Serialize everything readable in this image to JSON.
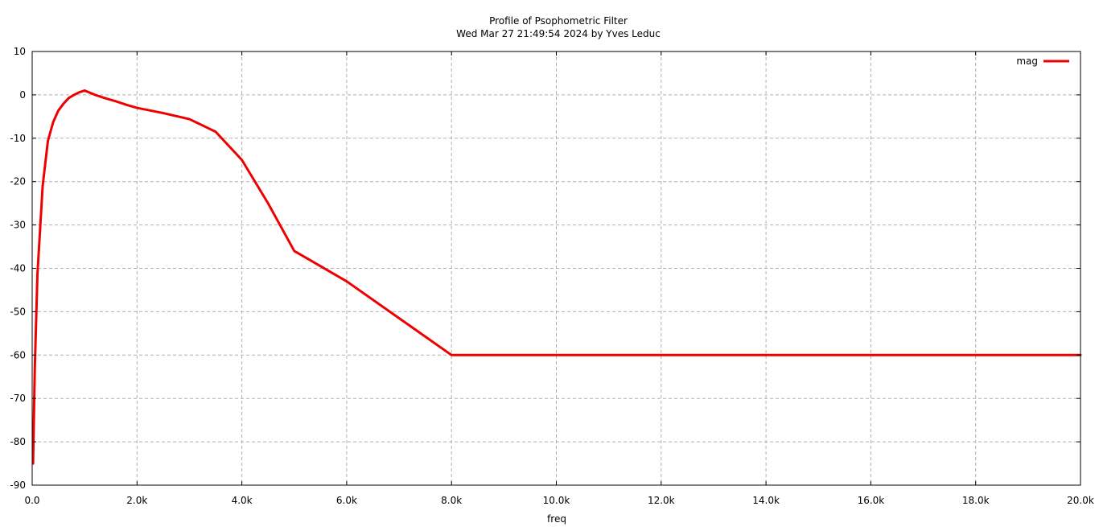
{
  "chart_data": {
    "type": "line",
    "title": "Profile of Psophometric Filter",
    "subtitle": "Wed Mar 27 21:49:54 2024 by Yves Leduc",
    "xlabel": "freq",
    "ylabel": "",
    "xlim": [
      0,
      20000
    ],
    "ylim": [
      -90,
      10
    ],
    "x_ticks": [
      0,
      2000,
      4000,
      6000,
      8000,
      10000,
      12000,
      14000,
      16000,
      18000,
      20000
    ],
    "x_tick_labels": [
      "0.0",
      "2.0k",
      "4.0k",
      "6.0k",
      "8.0k",
      "10.0k",
      "12.0k",
      "14.0k",
      "16.0k",
      "18.0k",
      "20.0k"
    ],
    "y_ticks": [
      10,
      0,
      -10,
      -20,
      -30,
      -40,
      -50,
      -60,
      -70,
      -80,
      -90
    ],
    "y_tick_labels": [
      "10",
      "0",
      "-10",
      "-20",
      "-30",
      "-40",
      "-50",
      "-60",
      "-70",
      "-80",
      "-90"
    ],
    "grid": true,
    "legend_position": "top-right",
    "series": [
      {
        "name": "mag",
        "color": "#ee0000",
        "x": [
          16.66,
          50,
          100,
          200,
          300,
          400,
          500,
          600,
          700,
          800,
          900,
          1000,
          1200,
          1400,
          1600,
          1800,
          2000,
          2500,
          3000,
          3500,
          4000,
          4500,
          5000,
          6000,
          7000,
          8000,
          10000,
          12000,
          14000,
          16000,
          18000,
          20000
        ],
        "values": [
          -85,
          -63,
          -41.4,
          -21,
          -10.6,
          -6.3,
          -3.6,
          -2,
          -0.7,
          0,
          0.6,
          1,
          0,
          -0.8,
          -1.5,
          -2.3,
          -3,
          -4.2,
          -5.6,
          -8.5,
          -15,
          -25,
          -36,
          -43,
          -51.5,
          -60,
          -60,
          -60,
          -60,
          -60,
          -60,
          -60
        ]
      }
    ]
  }
}
